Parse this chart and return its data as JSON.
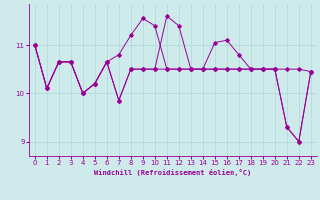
{
  "xlabel": "Windchill (Refroidissement éolien,°C)",
  "x": [
    0,
    1,
    2,
    3,
    4,
    5,
    6,
    7,
    8,
    9,
    10,
    11,
    12,
    13,
    14,
    15,
    16,
    17,
    18,
    19,
    20,
    21,
    22,
    23
  ],
  "line1": [
    11.0,
    10.1,
    10.65,
    10.65,
    10.0,
    10.2,
    10.65,
    10.8,
    11.2,
    11.55,
    11.4,
    10.5,
    10.5,
    10.5,
    10.5,
    10.5,
    10.5,
    10.5,
    10.5,
    10.5,
    10.5,
    10.5,
    10.5,
    10.45
  ],
  "line2": [
    11.0,
    10.1,
    10.65,
    10.65,
    10.0,
    10.2,
    10.65,
    9.85,
    10.5,
    10.5,
    10.5,
    11.6,
    11.4,
    10.5,
    10.5,
    11.05,
    11.1,
    10.8,
    10.5,
    10.5,
    10.5,
    9.3,
    9.0,
    10.45
  ],
  "line3": [
    11.0,
    10.1,
    10.65,
    10.65,
    10.0,
    10.2,
    10.65,
    9.85,
    10.5,
    10.5,
    10.5,
    10.5,
    10.5,
    10.5,
    10.5,
    10.5,
    10.5,
    10.5,
    10.5,
    10.5,
    10.5,
    9.3,
    9.0,
    10.45
  ],
  "ylim": [
    8.7,
    11.85
  ],
  "yticks": [
    9,
    10,
    11
  ],
  "xticks": [
    0,
    1,
    2,
    3,
    4,
    5,
    6,
    7,
    8,
    9,
    10,
    11,
    12,
    13,
    14,
    15,
    16,
    17,
    18,
    19,
    20,
    21,
    22,
    23
  ],
  "line_color": "#990099",
  "bg_color": "#ceeaea",
  "grid_color": "#aad8d8",
  "marker": "D",
  "marker_size": 1.8,
  "linewidth": 0.7
}
